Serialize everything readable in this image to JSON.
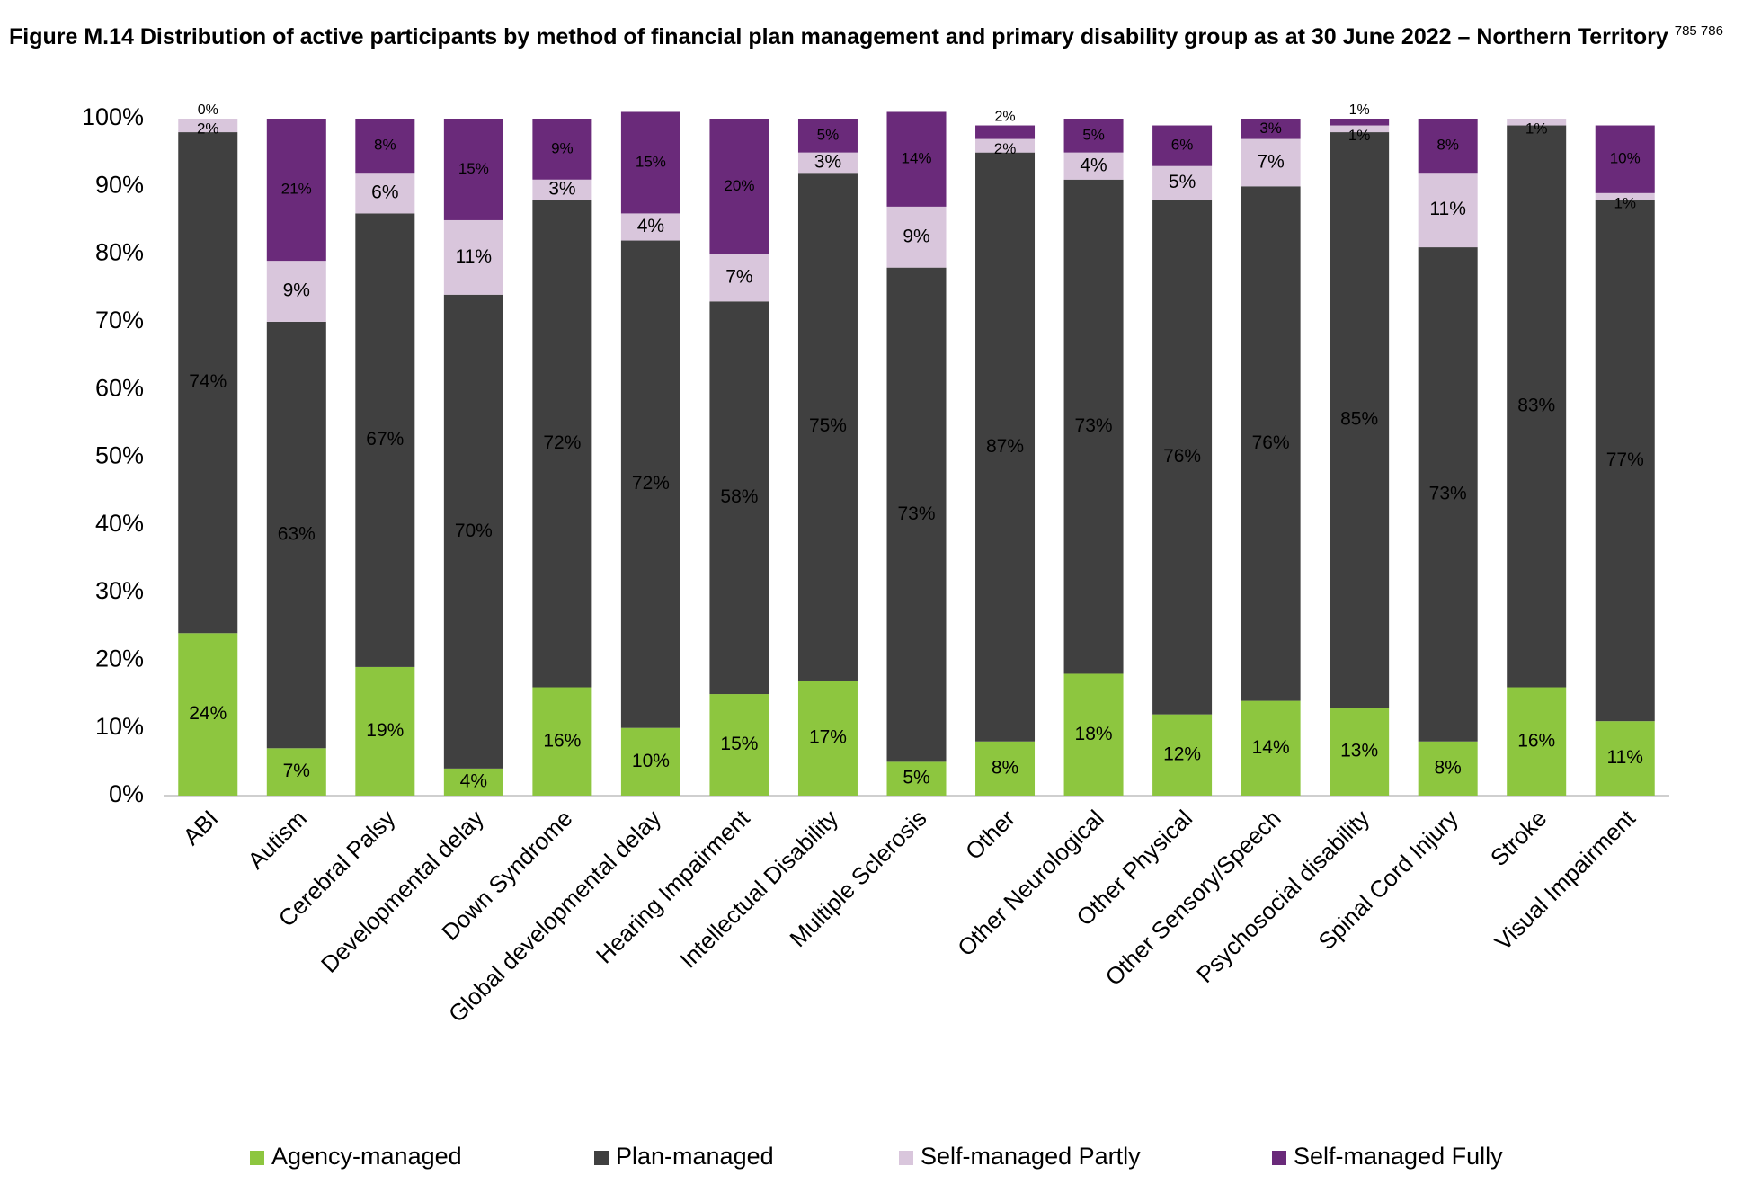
{
  "chart_data": {
    "type": "stacked_bar",
    "title": "Figure M.14 Distribution of active participants by method of financial plan management and primary disability group as at 30 June 2022 – Northern Territory",
    "title_superscript": "785 786",
    "categories": [
      "ABI",
      "Autism",
      "Cerebral Palsy",
      "Developmental delay",
      "Down Syndrome",
      "Global developmental delay",
      "Hearing Impairment",
      "Intellectual Disability",
      "Multiple Sclerosis",
      "Other",
      "Other Neurological",
      "Other Physical",
      "Other Sensory/Speech",
      "Psychosocial disability",
      "Spinal Cord Injury",
      "Stroke",
      "Visual Impairment"
    ],
    "series": [
      {
        "name": "Agency-managed",
        "color": "#8dc63f",
        "values": [
          24,
          7,
          19,
          4,
          16,
          10,
          15,
          17,
          5,
          8,
          18,
          12,
          14,
          13,
          8,
          16,
          11
        ],
        "value_labels": [
          "24%",
          "7%",
          "19%",
          "4%",
          "16%",
          "10%",
          "15%",
          "17%",
          "5%",
          "8%",
          "18%",
          "12%",
          "14%",
          "13%",
          "8%",
          "16%",
          "11%"
        ]
      },
      {
        "name": "Plan-managed",
        "color": "#404040",
        "values": [
          74,
          63,
          67,
          70,
          72,
          72,
          58,
          75,
          73,
          87,
          73,
          76,
          76,
          85,
          73,
          83,
          77
        ],
        "value_labels": [
          "74%",
          "63%",
          "67%",
          "70%",
          "72%",
          "72%",
          "58%",
          "75%",
          "73%",
          "87%",
          "73%",
          "76%",
          "76%",
          "85%",
          "73%",
          "83%",
          "77%"
        ]
      },
      {
        "name": "Self-managed Partly",
        "color": "#d9c6dc",
        "values": [
          2,
          9,
          6,
          11,
          3,
          4,
          7,
          3,
          9,
          2,
          4,
          5,
          7,
          1,
          11,
          1,
          1
        ],
        "value_labels": [
          "2%",
          "9%",
          "6%",
          "11%",
          "3%",
          "4%",
          "7%",
          "3%",
          "9%",
          "2%",
          "4%",
          "5%",
          "7%",
          "1%",
          "11%",
          "1%",
          "1%"
        ]
      },
      {
        "name": "Self-managed Fully",
        "color": "#6a2a7a",
        "values": [
          0,
          21,
          8,
          15,
          9,
          15,
          20,
          5,
          14,
          2,
          5,
          6,
          3,
          1,
          8,
          0,
          10
        ],
        "value_labels": [
          "0%",
          "21%",
          "8%",
          "15%",
          "9%",
          "15%",
          "20%",
          "5%",
          "14%",
          "2%",
          "5%",
          "6%",
          "3%",
          "1%",
          "8%",
          null,
          "10%"
        ]
      }
    ],
    "ylim": [
      0,
      100
    ],
    "yticks": [
      {
        "value": 0,
        "label": "0%"
      },
      {
        "value": 10,
        "label": "10%"
      },
      {
        "value": 20,
        "label": "20%"
      },
      {
        "value": 30,
        "label": "30%"
      },
      {
        "value": 40,
        "label": "40%"
      },
      {
        "value": 50,
        "label": "50%"
      },
      {
        "value": 60,
        "label": "60%"
      },
      {
        "value": 70,
        "label": "70%"
      },
      {
        "value": 80,
        "label": "80%"
      },
      {
        "value": 90,
        "label": "90%"
      },
      {
        "value": {
          "value": 100,
          "label": "100%"
        }
      }
    ],
    "legend": "bottom"
  }
}
